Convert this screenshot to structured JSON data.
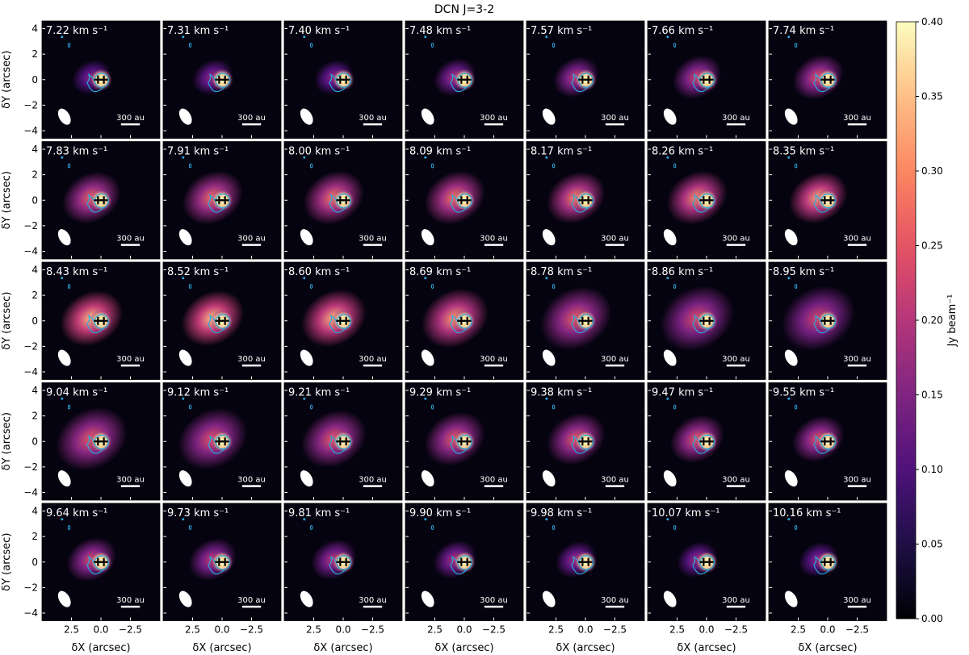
{
  "chart_data": {
    "type": "heatmap",
    "title": "DCN J=3-2",
    "layout": {
      "rows": 5,
      "cols": 7
    },
    "x_axis": {
      "label": "δX (arcsec)",
      "lim": [
        5.0,
        -5.0
      ],
      "ticks": [
        2.5,
        0.0,
        -2.5
      ],
      "tick_labels": [
        "2.5",
        "0.0",
        "−2.5"
      ]
    },
    "y_axis": {
      "label": "δY (arcsec)",
      "lim": [
        -4.6,
        4.6
      ],
      "ticks": [
        4,
        2,
        0,
        -2,
        -4
      ],
      "tick_labels": [
        "4",
        "2",
        "0",
        "−2",
        "−4"
      ]
    },
    "colorbar": {
      "label": "Jy beam⁻¹",
      "colormap": "magma",
      "lim": [
        0.0,
        0.4
      ],
      "ticks": [
        0.0,
        0.05,
        0.1,
        0.15,
        0.2,
        0.25,
        0.3,
        0.35,
        0.4
      ],
      "tick_labels": [
        "0.00",
        "0.05",
        "0.10",
        "0.15",
        "0.20",
        "0.25",
        "0.30",
        "0.35",
        "0.40"
      ]
    },
    "velocity_unit": "km s⁻¹",
    "channels": [
      {
        "v": "7.22",
        "extent": 0.55,
        "peak": 0.16
      },
      {
        "v": "7.31",
        "extent": 0.58,
        "peak": 0.18
      },
      {
        "v": "7.40",
        "extent": 0.55,
        "peak": 0.17
      },
      {
        "v": "7.48",
        "extent": 0.62,
        "peak": 0.2
      },
      {
        "v": "7.57",
        "extent": 0.7,
        "peak": 0.22
      },
      {
        "v": "7.66",
        "extent": 0.78,
        "peak": 0.23
      },
      {
        "v": "7.74",
        "extent": 0.82,
        "peak": 0.25
      },
      {
        "v": "7.83",
        "extent": 1.0,
        "peak": 0.27
      },
      {
        "v": "7.91",
        "extent": 1.05,
        "peak": 0.28
      },
      {
        "v": "8.00",
        "extent": 1.05,
        "peak": 0.29
      },
      {
        "v": "8.09",
        "extent": 1.05,
        "peak": 0.29
      },
      {
        "v": "8.17",
        "extent": 1.0,
        "peak": 0.3
      },
      {
        "v": "8.26",
        "extent": 1.05,
        "peak": 0.31
      },
      {
        "v": "8.35",
        "extent": 1.0,
        "peak": 0.33
      },
      {
        "v": "8.43",
        "extent": 1.1,
        "peak": 0.35
      },
      {
        "v": "8.52",
        "extent": 1.1,
        "peak": 0.35
      },
      {
        "v": "8.60",
        "extent": 1.15,
        "peak": 0.34
      },
      {
        "v": "8.69",
        "extent": 1.2,
        "peak": 0.32
      },
      {
        "v": "8.78",
        "extent": 1.3,
        "peak": 0.26
      },
      {
        "v": "8.86",
        "extent": 1.35,
        "peak": 0.24
      },
      {
        "v": "8.95",
        "extent": 1.35,
        "peak": 0.23
      },
      {
        "v": "9.04",
        "extent": 1.3,
        "peak": 0.26
      },
      {
        "v": "9.12",
        "extent": 1.25,
        "peak": 0.25
      },
      {
        "v": "9.21",
        "extent": 1.15,
        "peak": 0.26
      },
      {
        "v": "9.29",
        "extent": 1.05,
        "peak": 0.26
      },
      {
        "v": "9.38",
        "extent": 1.0,
        "peak": 0.26
      },
      {
        "v": "9.47",
        "extent": 0.9,
        "peak": 0.26
      },
      {
        "v": "9.55",
        "extent": 0.85,
        "peak": 0.25
      },
      {
        "v": "9.64",
        "extent": 0.8,
        "peak": 0.24
      },
      {
        "v": "9.73",
        "extent": 0.75,
        "peak": 0.22
      },
      {
        "v": "9.81",
        "extent": 0.7,
        "peak": 0.21
      },
      {
        "v": "9.90",
        "extent": 0.65,
        "peak": 0.2
      },
      {
        "v": "9.98",
        "extent": 0.6,
        "peak": 0.19
      },
      {
        "v": "10.07",
        "extent": 0.58,
        "peak": 0.18
      },
      {
        "v": "10.16",
        "extent": 0.55,
        "peak": 0.17
      }
    ],
    "scale_bar_label": "300 au",
    "contour_color": "#29a8e0",
    "beam_color": "#ffffff",
    "marker_color": "#000000"
  }
}
